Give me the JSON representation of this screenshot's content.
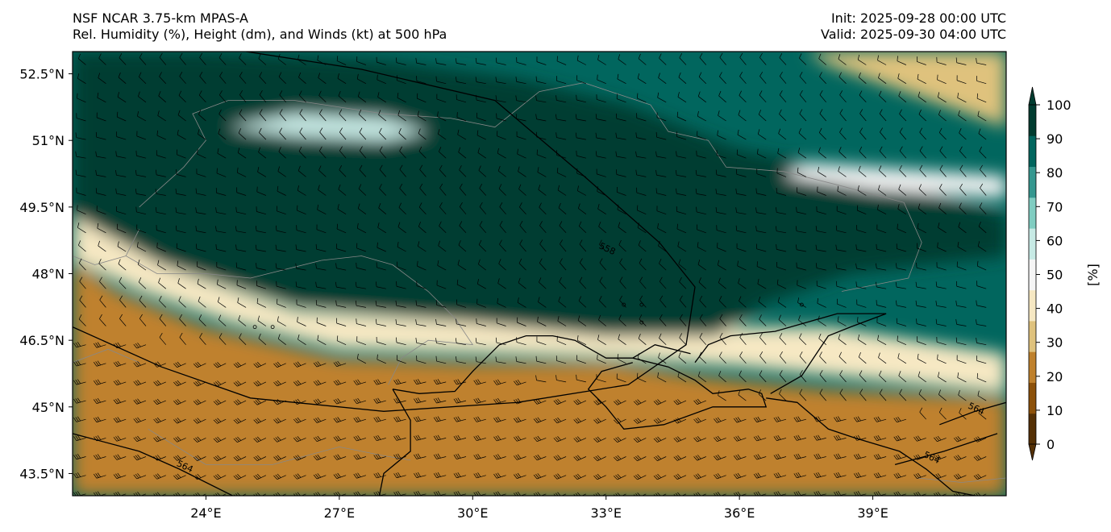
{
  "header": {
    "title_left_1": "NSF NCAR 3.75-km MPAS-A",
    "title_left_2": "Rel. Humidity (%), Height (dm), and Winds (kt) at 500 hPa",
    "title_right_1": "Init: 2025-09-28 00:00 UTC",
    "title_right_2": "Valid: 2025-09-30 04:00 UTC"
  },
  "map": {
    "lon_range": [
      21,
      42
    ],
    "lat_range": [
      43,
      53
    ],
    "lat_ticks": [
      {
        "value": 43.5,
        "label": "43.5°N"
      },
      {
        "value": 45,
        "label": "45°N"
      },
      {
        "value": 46.5,
        "label": "46.5°N"
      },
      {
        "value": 48,
        "label": "48°N"
      },
      {
        "value": 49.5,
        "label": "49.5°N"
      },
      {
        "value": 51,
        "label": "51°N"
      },
      {
        "value": 52.5,
        "label": "52.5°N"
      }
    ],
    "lon_ticks": [
      {
        "value": 24,
        "label": "24°E"
      },
      {
        "value": 27,
        "label": "27°E"
      },
      {
        "value": 30,
        "label": "30°E"
      },
      {
        "value": 33,
        "label": "33°E"
      },
      {
        "value": 36,
        "label": "36°E"
      },
      {
        "value": 39,
        "label": "39°E"
      }
    ],
    "contours": [
      {
        "label": "558",
        "points": [
          [
            24.9,
            53.0
          ],
          [
            27.5,
            52.6
          ],
          [
            30.5,
            51.9
          ],
          [
            32.5,
            50.2
          ],
          [
            34.2,
            48.7
          ],
          [
            35.0,
            47.7
          ],
          [
            34.8,
            46.4
          ],
          [
            33.5,
            45.5
          ],
          [
            31.0,
            45.1
          ],
          [
            28.0,
            44.9
          ],
          [
            25.0,
            45.2
          ],
          [
            23.0,
            45.9
          ],
          [
            21.0,
            46.8
          ]
        ],
        "label_at": [
          33.0,
          48.5
        ]
      },
      {
        "label": "564",
        "points": [
          [
            21.0,
            44.4
          ],
          [
            22.5,
            44.0
          ],
          [
            23.4,
            43.6
          ],
          [
            24.6,
            43.0
          ]
        ],
        "label_at": [
          23.5,
          43.6
        ]
      },
      {
        "label": "564",
        "points": [
          [
            39.5,
            43.7
          ],
          [
            40.6,
            44.0
          ],
          [
            41.8,
            44.4
          ]
        ],
        "label_at": [
          40.3,
          43.8
        ]
      },
      {
        "label": "564",
        "points": [
          [
            40.5,
            44.6
          ],
          [
            41.3,
            44.9
          ],
          [
            42.0,
            45.1
          ]
        ],
        "label_at": [
          41.3,
          44.9
        ]
      }
    ],
    "rh_regions": [
      {
        "level": 15,
        "polygon": [
          [
            21.0,
            43.0
          ],
          [
            42.0,
            43.0
          ],
          [
            42.0,
            45.2
          ],
          [
            38.0,
            45.4
          ],
          [
            35.0,
            45.7
          ],
          [
            33.0,
            46.0
          ],
          [
            30.0,
            46.0
          ],
          [
            27.0,
            46.1
          ],
          [
            24.0,
            46.8
          ],
          [
            22.0,
            47.6
          ],
          [
            21.0,
            48.3
          ]
        ]
      },
      {
        "level": 35,
        "polygon": [
          [
            21.0,
            48.3
          ],
          [
            22.5,
            47.6
          ],
          [
            24.5,
            46.9
          ],
          [
            27.0,
            46.3
          ],
          [
            30.0,
            46.2
          ],
          [
            33.0,
            46.1
          ],
          [
            36.0,
            45.9
          ],
          [
            39.0,
            45.6
          ],
          [
            42.0,
            45.3
          ],
          [
            42.0,
            46.2
          ],
          [
            38.0,
            46.8
          ],
          [
            34.0,
            46.8
          ],
          [
            30.0,
            46.9
          ],
          [
            26.0,
            47.2
          ],
          [
            23.0,
            48.2
          ],
          [
            21.0,
            49.3
          ]
        ]
      },
      {
        "level": 95,
        "polygon": [
          [
            21.0,
            49.3
          ],
          [
            23.0,
            48.2
          ],
          [
            26.0,
            47.3
          ],
          [
            30.0,
            46.9
          ],
          [
            33.0,
            46.6
          ],
          [
            35.5,
            46.6
          ],
          [
            36.5,
            47.3
          ],
          [
            38.5,
            48.0
          ],
          [
            42.0,
            48.4
          ],
          [
            42.0,
            49.3
          ],
          [
            39.0,
            50.2
          ],
          [
            36.0,
            50.8
          ],
          [
            33.5,
            51.8
          ],
          [
            31.0,
            52.4
          ],
          [
            28.0,
            52.8
          ],
          [
            24.0,
            53.0
          ],
          [
            21.0,
            53.0
          ]
        ]
      },
      {
        "level": 30,
        "polygon": [
          [
            37.5,
            53.0
          ],
          [
            42.0,
            53.0
          ],
          [
            42.0,
            51.3
          ],
          [
            40.0,
            52.0
          ],
          [
            38.0,
            52.7
          ]
        ]
      },
      {
        "level": 45,
        "polygon": [
          [
            37.5,
            50.5
          ],
          [
            40.5,
            50.3
          ],
          [
            42.0,
            50.2
          ],
          [
            42.0,
            49.7
          ],
          [
            39.0,
            49.9
          ],
          [
            37.0,
            50.2
          ]
        ]
      },
      {
        "level": 55,
        "polygon": [
          [
            26.0,
            51.6
          ],
          [
            28.0,
            51.5
          ],
          [
            29.0,
            51.2
          ],
          [
            28.0,
            51.0
          ],
          [
            26.0,
            51.1
          ],
          [
            24.5,
            51.3
          ]
        ]
      }
    ],
    "coastlines": [
      [
        [
          28.2,
          45.4
        ],
        [
          28.8,
          45.3
        ],
        [
          29.6,
          45.35
        ],
        [
          30.0,
          45.8
        ],
        [
          30.6,
          46.4
        ],
        [
          31.2,
          46.6
        ],
        [
          31.8,
          46.6
        ],
        [
          32.3,
          46.5
        ],
        [
          33.0,
          46.1
        ],
        [
          33.6,
          46.1
        ],
        [
          34.4,
          45.9
        ],
        [
          35.0,
          45.6
        ],
        [
          35.4,
          45.3
        ],
        [
          36.2,
          45.4
        ],
        [
          36.5,
          45.3
        ],
        [
          36.6,
          45.0
        ],
        [
          35.4,
          45.0
        ],
        [
          34.3,
          44.6
        ],
        [
          33.4,
          44.5
        ],
        [
          33.0,
          45.0
        ],
        [
          32.6,
          45.4
        ],
        [
          32.9,
          45.8
        ],
        [
          33.6,
          46.0
        ]
      ],
      [
        [
          28.2,
          45.4
        ],
        [
          28.6,
          44.7
        ],
        [
          28.6,
          44.0
        ],
        [
          28.0,
          43.5
        ],
        [
          27.9,
          43.0
        ]
      ],
      [
        [
          36.7,
          45.3
        ],
        [
          37.4,
          45.7
        ],
        [
          38.0,
          46.6
        ],
        [
          38.5,
          46.8
        ],
        [
          39.3,
          47.1
        ],
        [
          38.2,
          47.1
        ],
        [
          37.5,
          46.9
        ],
        [
          36.8,
          46.7
        ],
        [
          35.8,
          46.6
        ],
        [
          35.3,
          46.4
        ],
        [
          35.0,
          46.0
        ]
      ],
      [
        [
          36.6,
          45.2
        ],
        [
          37.3,
          45.1
        ],
        [
          38.0,
          44.5
        ],
        [
          38.6,
          44.3
        ],
        [
          39.6,
          44.0
        ],
        [
          40.2,
          43.6
        ],
        [
          40.8,
          43.1
        ],
        [
          41.3,
          43.0
        ]
      ],
      [
        [
          33.6,
          46.1
        ],
        [
          34.1,
          46.4
        ],
        [
          34.9,
          46.2
        ]
      ]
    ],
    "borders": [
      [
        [
          22.5,
          49.5
        ],
        [
          23.5,
          50.4
        ],
        [
          24.0,
          51.0
        ],
        [
          23.7,
          51.6
        ],
        [
          24.5,
          51.9
        ],
        [
          26.0,
          51.9
        ],
        [
          28.0,
          51.6
        ],
        [
          29.5,
          51.5
        ],
        [
          30.5,
          51.3
        ],
        [
          31.5,
          52.1
        ],
        [
          32.5,
          52.3
        ],
        [
          34.0,
          51.8
        ],
        [
          34.4,
          51.2
        ],
        [
          35.3,
          51.0
        ],
        [
          35.7,
          50.4
        ],
        [
          37.0,
          50.3
        ],
        [
          38.2,
          50.0
        ],
        [
          39.7,
          49.6
        ],
        [
          40.1,
          48.7
        ],
        [
          39.8,
          47.9
        ],
        [
          38.3,
          47.6
        ]
      ],
      [
        [
          26.6,
          48.3
        ],
        [
          27.5,
          48.4
        ],
        [
          28.2,
          48.2
        ],
        [
          29.0,
          47.6
        ],
        [
          29.6,
          47.0
        ],
        [
          30.0,
          46.4
        ],
        [
          29.0,
          46.5
        ],
        [
          28.4,
          46.1
        ],
        [
          28.1,
          45.5
        ]
      ],
      [
        [
          26.6,
          48.3
        ],
        [
          25.0,
          47.9
        ],
        [
          24.0,
          48.0
        ],
        [
          22.9,
          48.0
        ],
        [
          22.2,
          48.4
        ],
        [
          22.5,
          49.0
        ]
      ],
      [
        [
          22.2,
          48.4
        ],
        [
          21.5,
          48.2
        ],
        [
          21.0,
          48.4
        ]
      ],
      [
        [
          22.7,
          44.5
        ],
        [
          24.0,
          43.7
        ],
        [
          25.5,
          43.7
        ],
        [
          27.0,
          44.1
        ],
        [
          28.0,
          43.9
        ],
        [
          28.6,
          43.8
        ]
      ],
      [
        [
          21.0,
          46.0
        ],
        [
          21.8,
          46.3
        ],
        [
          22.5,
          46.0
        ]
      ],
      [
        [
          40.0,
          43.4
        ],
        [
          41.0,
          43.3
        ],
        [
          42.0,
          43.4
        ]
      ]
    ],
    "lakes_marks": [
      [
        25.1,
        46.8
      ],
      [
        25.5,
        46.8
      ],
      [
        33.4,
        47.3
      ],
      [
        33.8,
        47.3
      ],
      [
        33.8,
        46.9
      ],
      [
        37.4,
        47.3
      ]
    ]
  },
  "colorbar": {
    "label": "[%]",
    "ticks": [
      "0",
      "10",
      "20",
      "30",
      "40",
      "50",
      "60",
      "70",
      "80",
      "90",
      "100"
    ],
    "colors": [
      "#543005",
      "#8c510a",
      "#bf812d",
      "#dfc27d",
      "#f6e8c3",
      "#f5f5f5",
      "#c7eae5",
      "#80cdc1",
      "#35978f",
      "#01665e",
      "#003c30"
    ]
  }
}
